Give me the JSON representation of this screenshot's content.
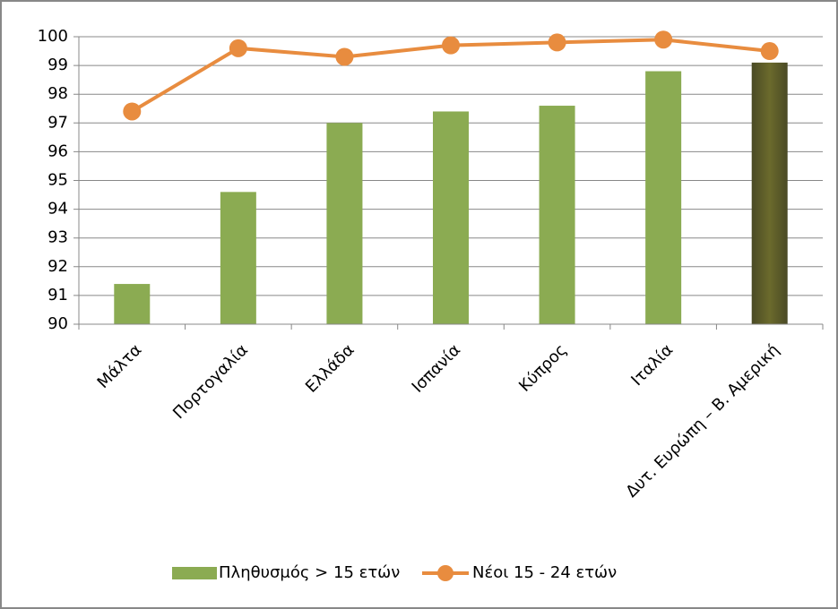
{
  "chart_data": {
    "type": "bar-line",
    "categories": [
      "Μάλτα",
      "Πορτογαλία",
      "Ελλάδα",
      "Ισπανία",
      "Κύπρος",
      "Ιταλία",
      "Δυτ. Ευρώπη – Β. Αμερική"
    ],
    "series": [
      {
        "name": "Πληθυσμός > 15 ετών",
        "type": "bar",
        "color": "#8bab52",
        "colors": [
          "#8bab52",
          "#8bab52",
          "#8bab52",
          "#8bab52",
          "#8bab52",
          "#8bab52",
          "#6b6a2c"
        ],
        "values": [
          91.4,
          94.6,
          97.0,
          97.4,
          97.6,
          98.8,
          99.1
        ]
      },
      {
        "name": "Νέοι 15 - 24 ετών",
        "type": "line",
        "color": "#e88c3f",
        "values": [
          97.4,
          99.6,
          99.3,
          99.7,
          99.8,
          99.9,
          99.5
        ]
      }
    ],
    "ylim": [
      90,
      100
    ],
    "yticks": [
      90,
      91,
      92,
      93,
      94,
      95,
      96,
      97,
      98,
      99,
      100
    ],
    "grid": true,
    "legend": "bottom"
  }
}
